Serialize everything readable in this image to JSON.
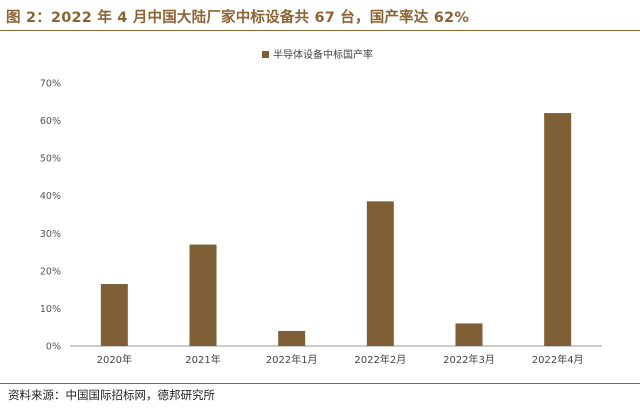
{
  "figure": {
    "title": "图 2：2022 年 4 月中国大陆厂家中标设备共 67 台，国产率达 62%",
    "source": "资料来源：中国国际招标网，德邦研究所"
  },
  "colors": {
    "bar": "#7E5F36",
    "accent": "#8B6434",
    "axis": "#9a9a9a",
    "tick_text": "#555555"
  },
  "chart_data": {
    "type": "bar",
    "categories": [
      "2020年",
      "2021年",
      "2022年1月",
      "2022年2月",
      "2022年3月",
      "2022年4月"
    ],
    "series": [
      {
        "name": "半导体设备中标国产率",
        "values": [
          16.5,
          27,
          4,
          38.5,
          6,
          62
        ]
      }
    ],
    "yticks": [
      "0%",
      "10%",
      "20%",
      "30%",
      "40%",
      "50%",
      "60%",
      "70%"
    ],
    "ylim": [
      0,
      70
    ],
    "legend_position": "top-center",
    "grid": false
  }
}
